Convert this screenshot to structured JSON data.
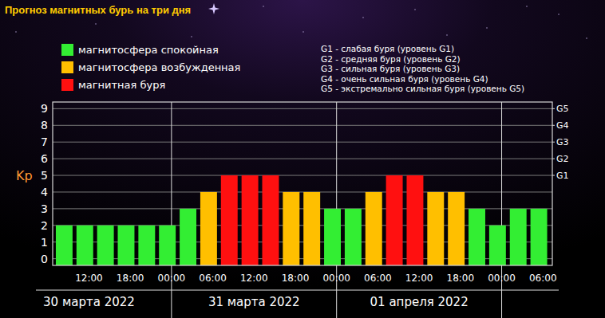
{
  "chart_data": {
    "type": "bar",
    "title": "Прогноз магнитных бурь на три дня",
    "y_label": "Kp",
    "categories": [
      null,
      "12:00",
      null,
      "18:00",
      null,
      "00:00",
      null,
      "06:00",
      null,
      "12:00",
      null,
      "18:00",
      null,
      "00:00",
      null,
      "06:00",
      null,
      "12:00",
      null,
      "18:00",
      null,
      "00:00",
      null,
      "06:00"
    ],
    "values": [
      2,
      2,
      2,
      2,
      2,
      2,
      3,
      4,
      5,
      5,
      5,
      4,
      4,
      3,
      3,
      4,
      5,
      5,
      4,
      4,
      3,
      2,
      3,
      3
    ],
    "colors": [
      "#33ee33",
      "#33ee33",
      "#33ee33",
      "#33ee33",
      "#33ee33",
      "#33ee33",
      "#33ee33",
      "#ffbf00",
      "#ff1010",
      "#ff1010",
      "#ff1010",
      "#ffbf00",
      "#ffbf00",
      "#33ee33",
      "#33ee33",
      "#ffbf00",
      "#ff1010",
      "#ff1010",
      "#ffbf00",
      "#ffbf00",
      "#33ee33",
      "#33ee33",
      "#33ee33",
      "#33ee33"
    ],
    "dates": [
      "30 марта 2022",
      "31 марта 2022",
      "01 апреля 2022"
    ],
    "ylim": [
      -0.4,
      9.4
    ],
    "yticks": [
      0,
      1,
      2,
      3,
      4,
      5,
      6,
      7,
      8,
      9
    ],
    "y2lim": [
      -0.4,
      9.4
    ],
    "y2ticks": [
      {
        "value": 5,
        "label": "G1"
      },
      {
        "value": 6,
        "label": "G2"
      },
      {
        "value": 7,
        "label": "G3"
      },
      {
        "value": 8,
        "label": "G4"
      },
      {
        "value": 9,
        "label": "G5"
      }
    ],
    "grid": true,
    "legend_items": [
      {
        "label": "магнитосфера спокойная",
        "color": "#33ee33"
      },
      {
        "label": "магнитосфера возбужденная",
        "color": "#ffbf00"
      },
      {
        "label": "магнитная буря",
        "color": "#ff1010"
      }
    ],
    "notes": [
      "G1 - слабая буря (уровень G1)",
      "G2 - средняя буря (уровень G2)",
      "G3 - сильная буря (уровень G3)",
      "G4 - очень сильная буря (уровень G4)",
      "G5 - экстремально сильная буря (уровень G5)"
    ]
  }
}
